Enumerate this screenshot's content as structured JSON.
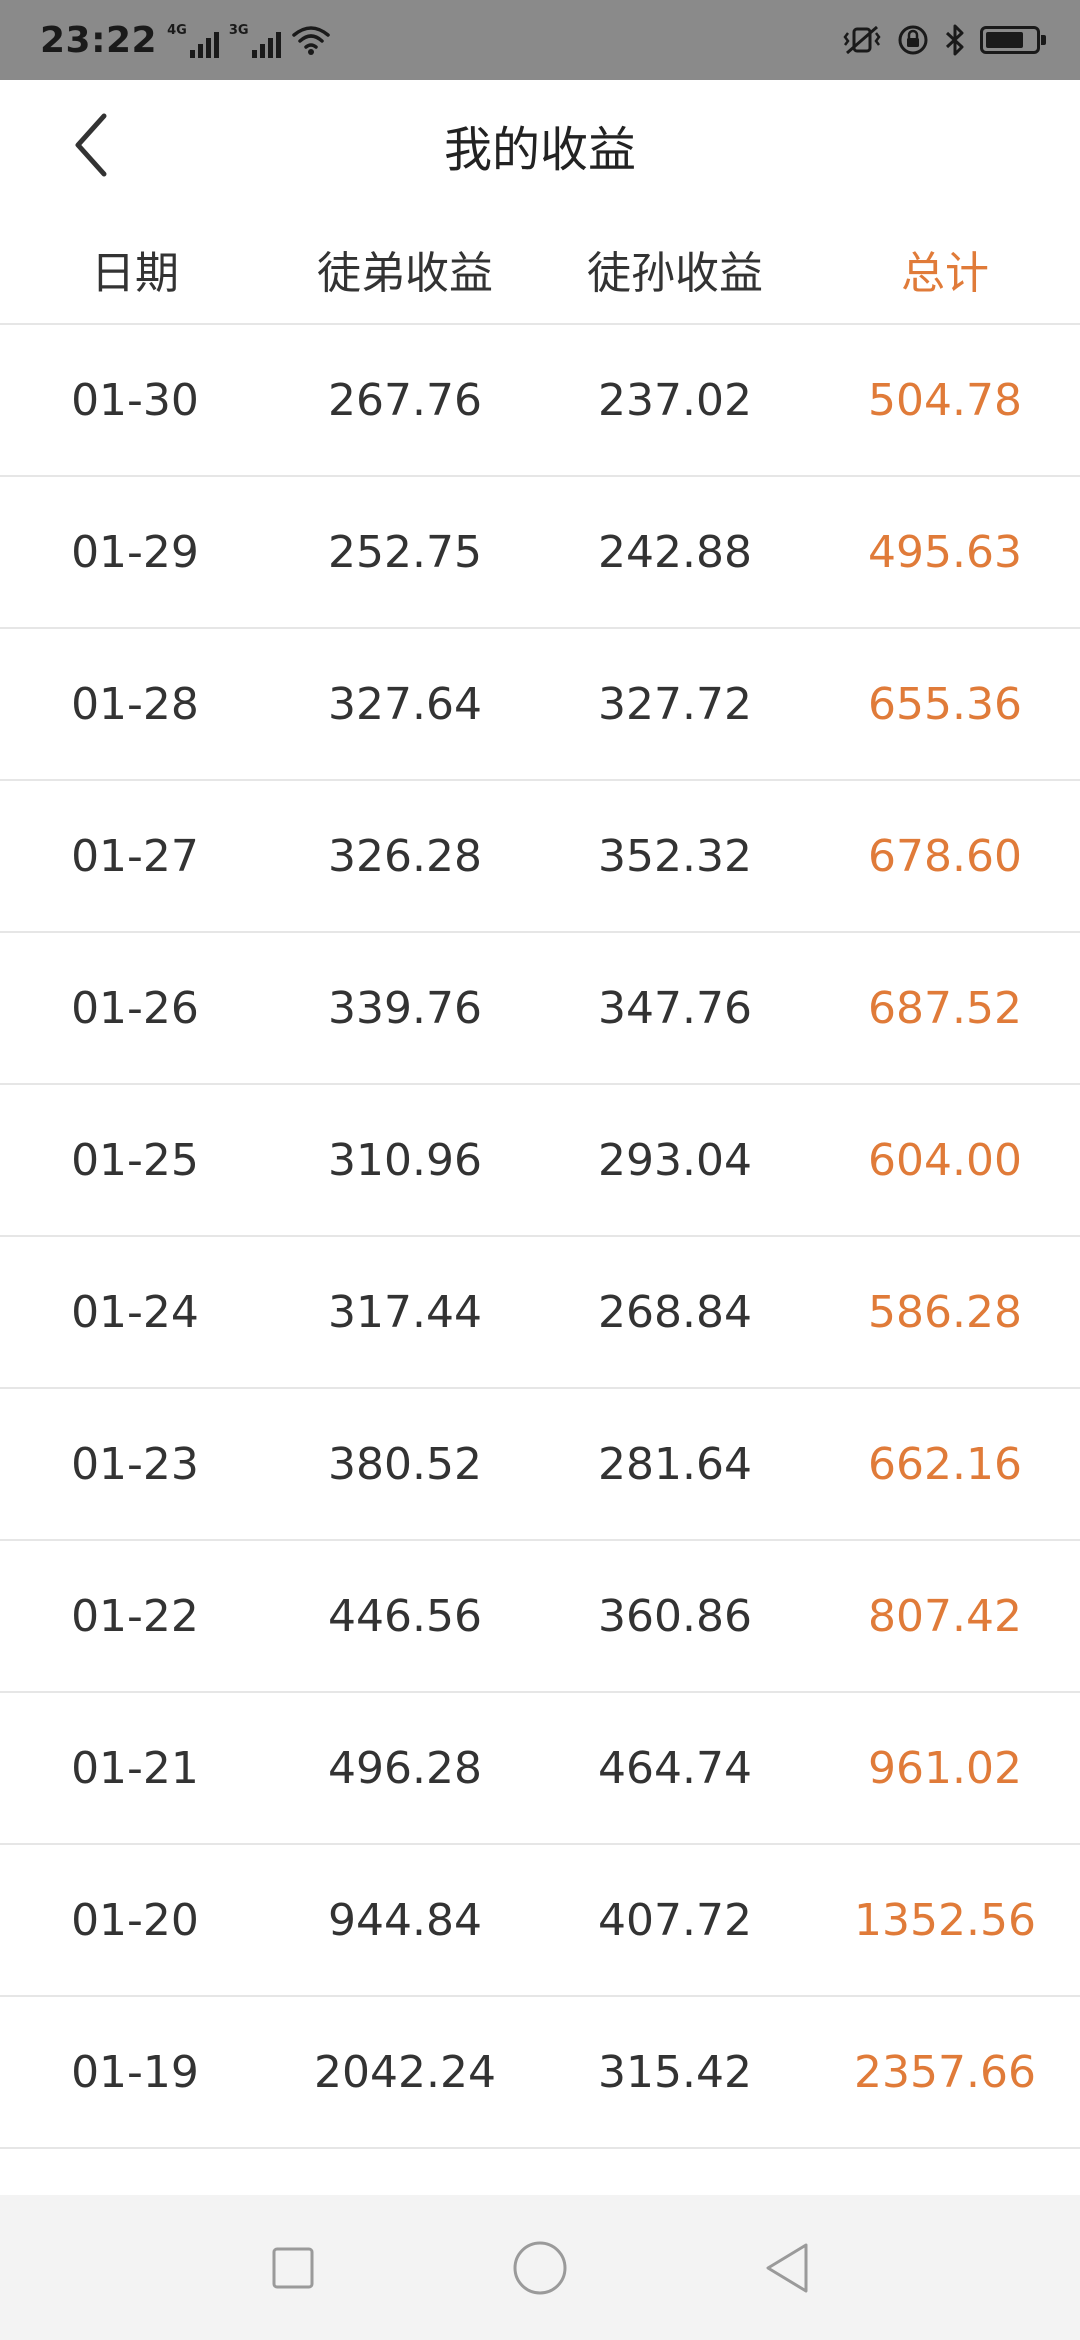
{
  "status_bar": {
    "time": "23:22",
    "net1": "4G",
    "net2": "3G"
  },
  "header": {
    "title": "我的收益"
  },
  "table": {
    "columns": [
      "日期",
      "徒弟收益",
      "徒孙收益",
      "总计"
    ],
    "rows": [
      [
        "01-30",
        "267.76",
        "237.02",
        "504.78"
      ],
      [
        "01-29",
        "252.75",
        "242.88",
        "495.63"
      ],
      [
        "01-28",
        "327.64",
        "327.72",
        "655.36"
      ],
      [
        "01-27",
        "326.28",
        "352.32",
        "678.60"
      ],
      [
        "01-26",
        "339.76",
        "347.76",
        "687.52"
      ],
      [
        "01-25",
        "310.96",
        "293.04",
        "604.00"
      ],
      [
        "01-24",
        "317.44",
        "268.84",
        "586.28"
      ],
      [
        "01-23",
        "380.52",
        "281.64",
        "662.16"
      ],
      [
        "01-22",
        "446.56",
        "360.86",
        "807.42"
      ],
      [
        "01-21",
        "496.28",
        "464.74",
        "961.02"
      ],
      [
        "01-20",
        "944.84",
        "407.72",
        "1352.56"
      ],
      [
        "01-19",
        "2042.24",
        "315.42",
        "2357.66"
      ]
    ]
  },
  "colors": {
    "accent": "#e07b39",
    "status_bar": "#8a8a8a",
    "divider": "#e6e6e6"
  },
  "icons": {
    "back": "chevron-left-icon",
    "recents": "square-icon",
    "home": "circle-icon",
    "nav_back": "triangle-left-icon"
  }
}
